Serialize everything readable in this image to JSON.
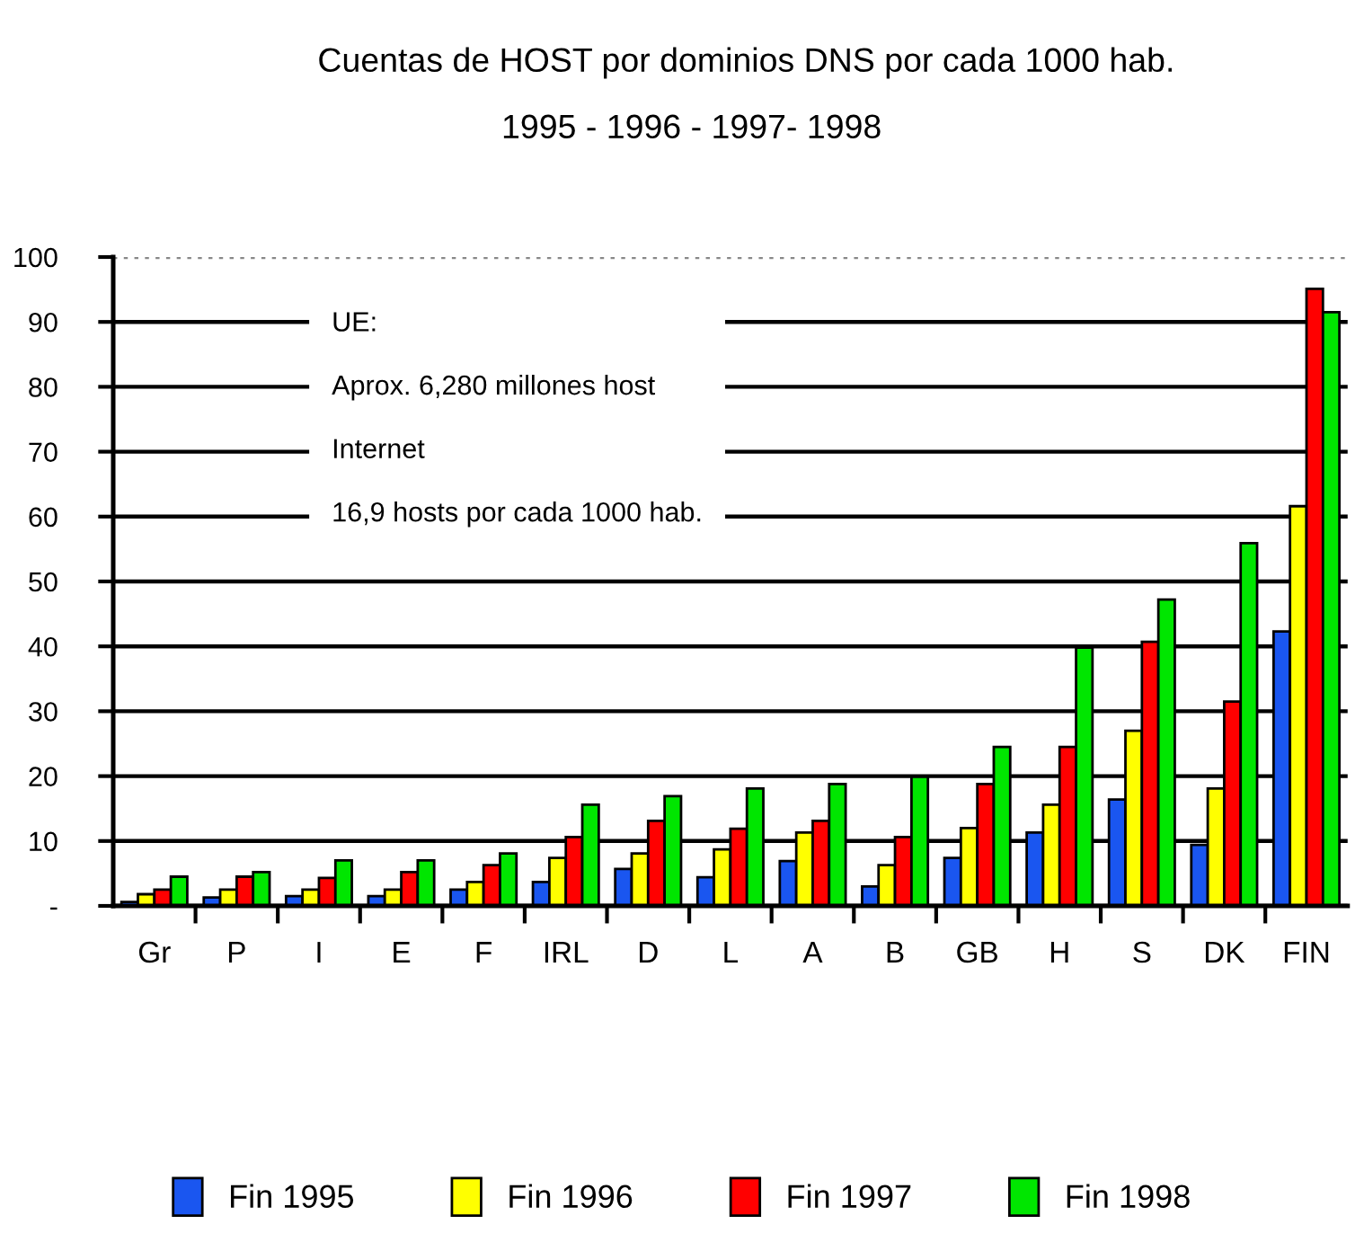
{
  "chart_data": {
    "type": "bar",
    "title": "Cuentas de HOST por dominios DNS por cada 1000 hab.",
    "subtitle": "1995 - 1996 - 1997- 1998",
    "categories": [
      "Gr",
      "P",
      "I",
      "E",
      "F",
      "IRL",
      "D",
      "L",
      "A",
      "B",
      "GB",
      "H",
      "S",
      "DK",
      "FIN"
    ],
    "series": [
      {
        "name": "Fin 1995",
        "color": "#1a56f0",
        "values": [
          0.6,
          1.3,
          1.5,
          1.5,
          2.5,
          3.7,
          5.7,
          4.4,
          6.9,
          3.0,
          7.4,
          11.3,
          16.4,
          9.4,
          42.3
        ]
      },
      {
        "name": "Fin 1996",
        "color": "#ffff00",
        "values": [
          1.8,
          2.5,
          2.5,
          2.5,
          3.7,
          7.4,
          8.1,
          8.7,
          11.3,
          6.3,
          12.0,
          15.6,
          27.0,
          18.1,
          61.6
        ]
      },
      {
        "name": "Fin 1997",
        "color": "#ff0000",
        "values": [
          2.5,
          4.5,
          4.3,
          5.2,
          6.3,
          10.6,
          13.1,
          11.9,
          13.1,
          10.6,
          18.8,
          24.5,
          40.7,
          31.5,
          95.1
        ]
      },
      {
        "name": "Fin 1998",
        "color": "#00e600",
        "values": [
          4.5,
          5.2,
          7.0,
          7.0,
          8.1,
          15.6,
          16.9,
          18.1,
          18.8,
          19.9,
          24.5,
          39.8,
          47.2,
          55.9,
          91.5
        ]
      }
    ],
    "ylim": [
      0,
      100
    ],
    "yticks": [
      {
        "value": 0,
        "label": "-"
      },
      10,
      20,
      30,
      40,
      50,
      60,
      70,
      80,
      90,
      100
    ],
    "grid": "y",
    "legend": "bottom",
    "annotations": [
      "UE:\nAprox. 6,280 millones host\nInternet\n16,9 hosts por cada 1000 hab."
    ]
  }
}
